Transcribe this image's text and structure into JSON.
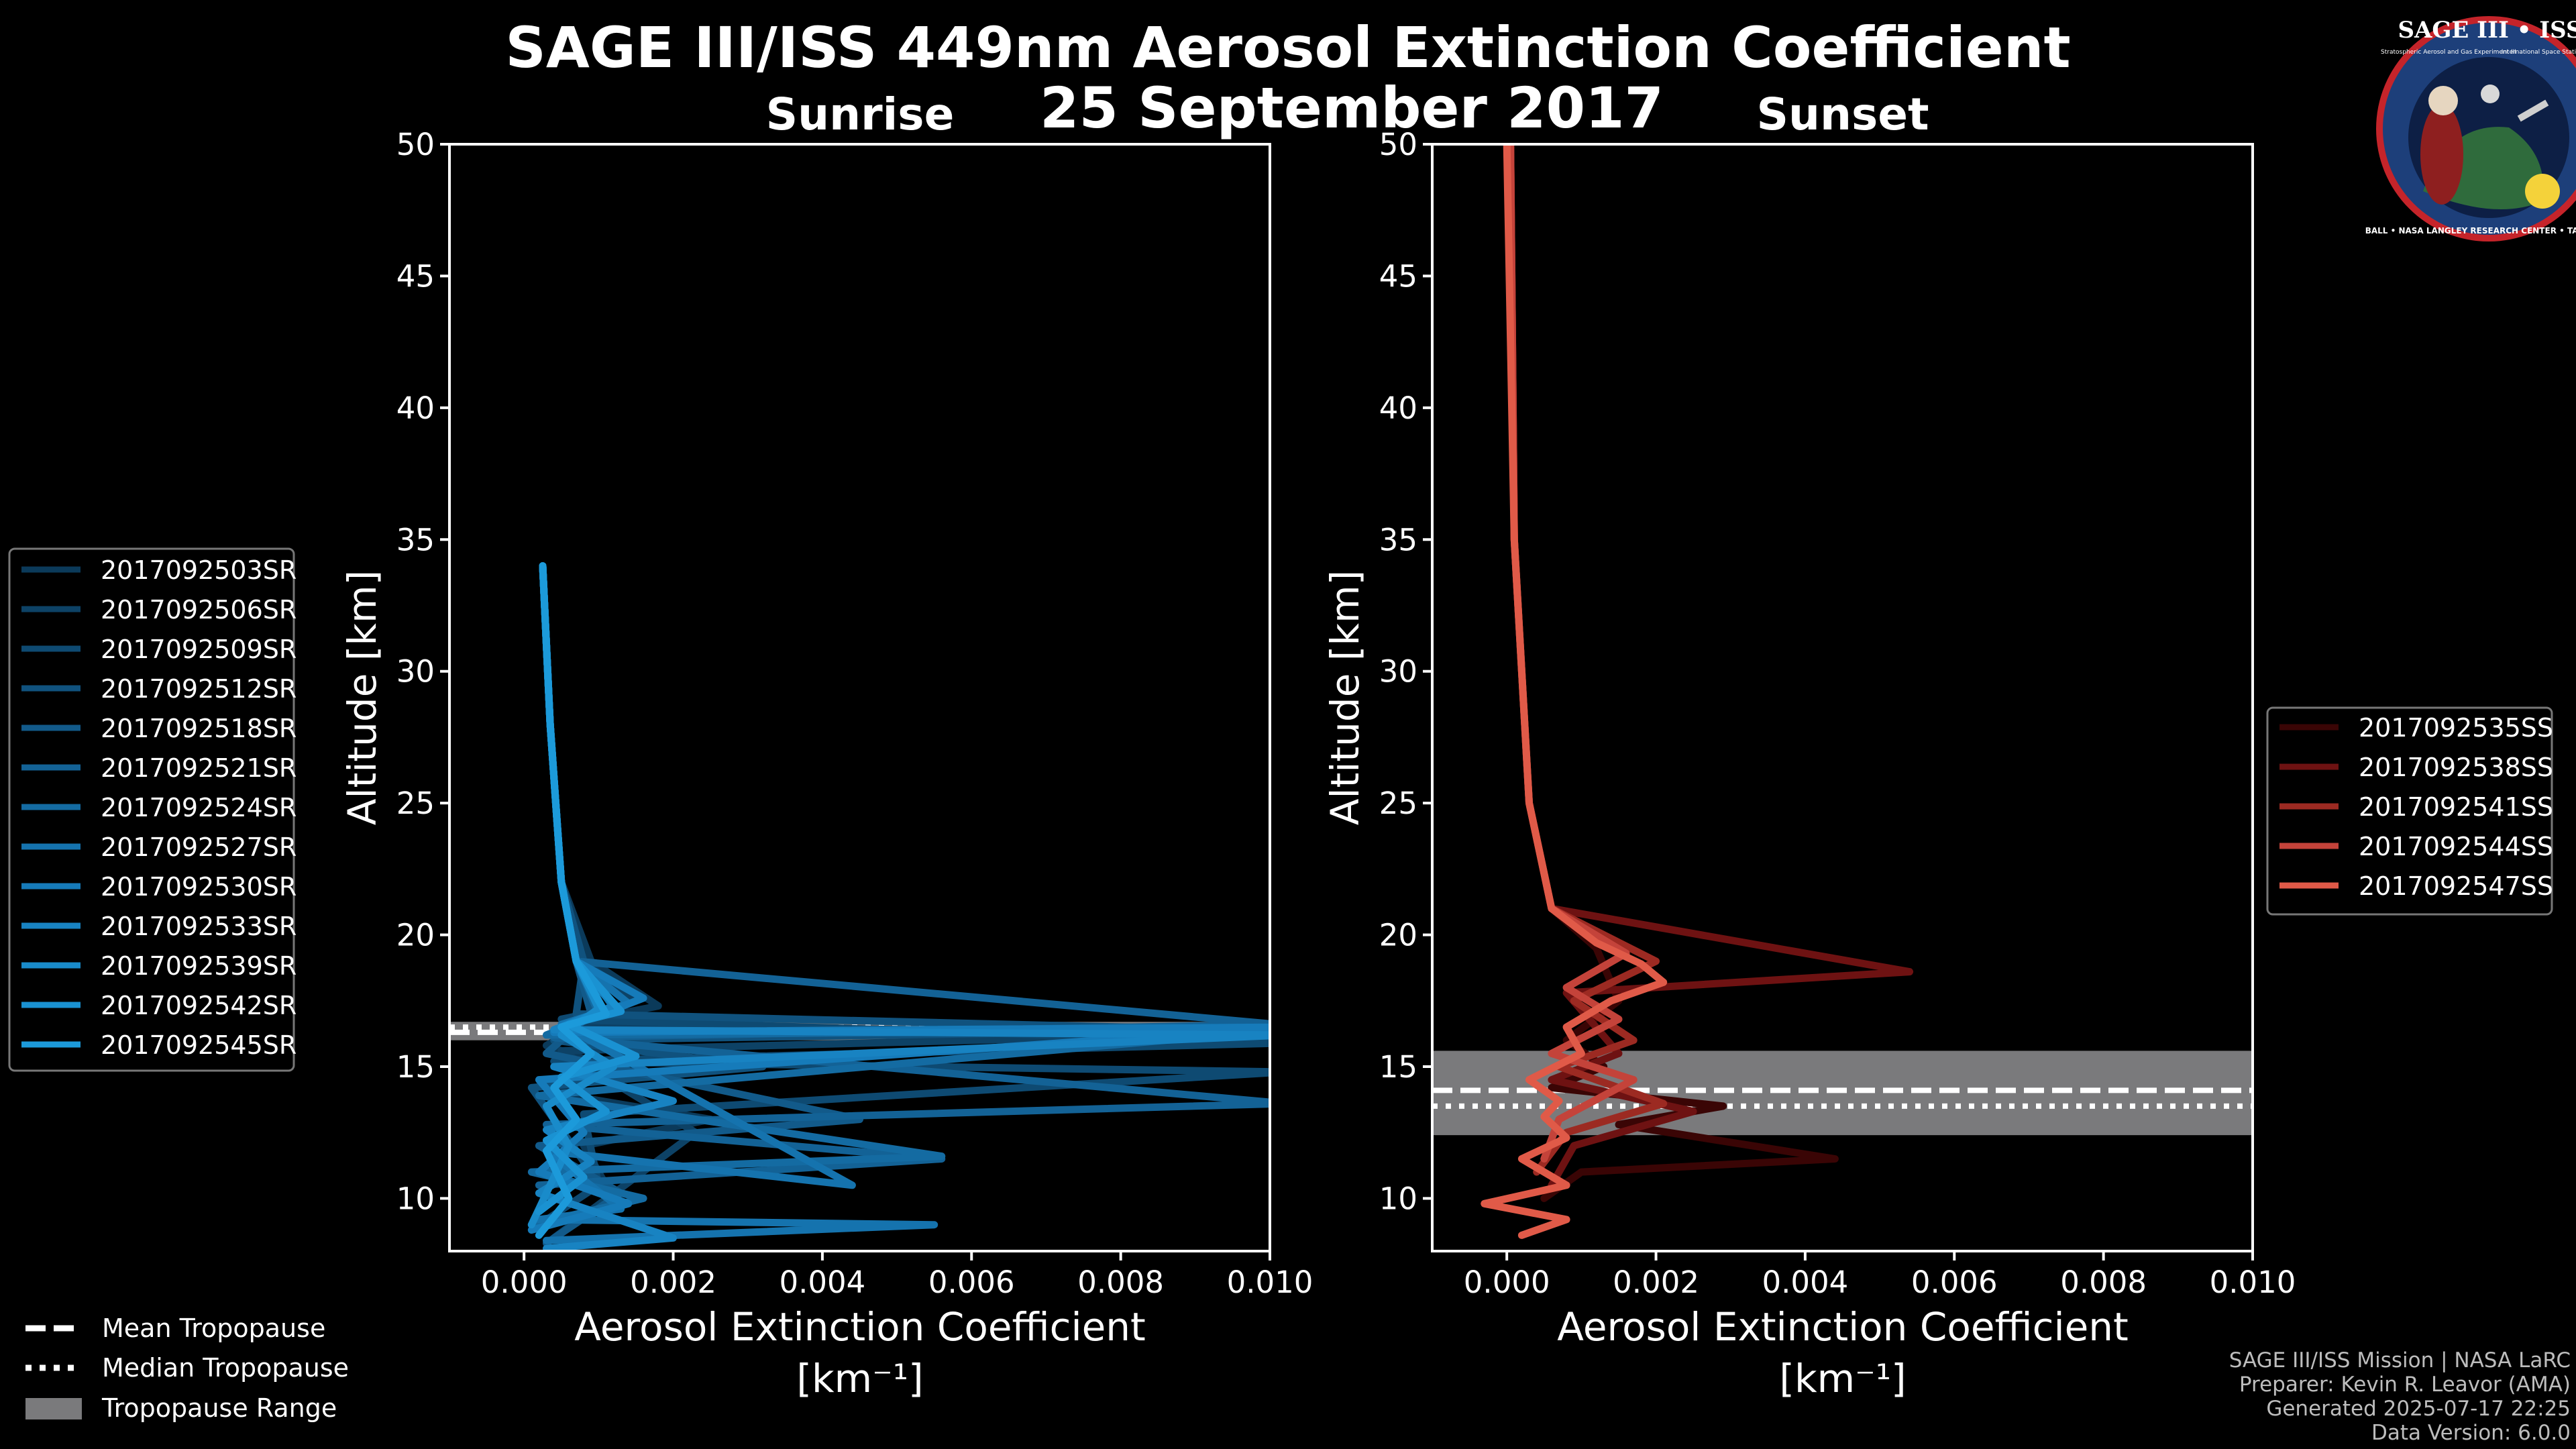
{
  "title": "SAGE III/ISS 449nm Aerosol Extinction Coefficient",
  "date": "25 September 2017",
  "logo": {
    "text": "SAGE III • ISS",
    "small1": "Stratospheric Aerosol and Gas Experiment III",
    "small2": "International Space Station",
    "ring": "BALL • NASA LANGLEY RESEARCH CENTER • TAS • ESA"
  },
  "credits": [
    "SAGE III/ISS Mission | NASA LaRC",
    "Preparer: Kevin R. Leavor (AMA)",
    "Generated 2025-07-17 22:25",
    "Data Version: 6.0.0"
  ],
  "tropopause_legend": {
    "mean": "Mean Tropopause",
    "median": "Median Tropopause",
    "range": "Tropopause Range"
  },
  "colors": {
    "sunrise": "#1a8fce",
    "sunset": "#e05a48",
    "tropo_band": "#7a7a7c"
  },
  "chart_data": [
    {
      "type": "line",
      "title": "Sunrise",
      "xlabel": "Aerosol Extinction Coefficient",
      "xunit": "[km⁻¹]",
      "ylabel": "Altitude [km]",
      "xlim": [
        -0.001,
        0.01
      ],
      "ylim": [
        8,
        50
      ],
      "xticks": [
        "0.000",
        "0.002",
        "0.004",
        "0.006",
        "0.008",
        "0.010"
      ],
      "xtick_values": [
        0,
        0.002,
        0.004,
        0.006,
        0.008,
        0.01
      ],
      "yticks": [
        10,
        15,
        20,
        25,
        30,
        35,
        40,
        45,
        50
      ],
      "tropopause": {
        "mean": 16.3,
        "median": 16.5,
        "range": [
          16.0,
          16.7
        ]
      },
      "series": [
        {
          "name": "2017092503SR",
          "color": "#0b3a5a",
          "x": [
            0.00025,
            0.00035,
            0.0005,
            0.0009,
            0.0018,
            0.0009,
            0.0003,
            0.0011,
            0.0004,
            0.0025,
            0.0008,
            0.0012,
            0.0006
          ],
          "y": [
            34,
            28,
            22,
            19,
            17.3,
            16.8,
            15.8,
            15.0,
            14.0,
            13.0,
            12.0,
            10.0,
            9.0
          ]
        },
        {
          "name": "2017092506SR",
          "color": "#0d4266",
          "x": [
            0.00025,
            0.00035,
            0.0005,
            0.0008,
            0.0015,
            0.0006,
            0.0102,
            0.0005,
            0.0023,
            0.0004
          ],
          "y": [
            34,
            28,
            22,
            19,
            17.5,
            16.5,
            16.3,
            15.6,
            12.5,
            8.5
          ]
        },
        {
          "name": "2017092509SR",
          "color": "#0e4a72",
          "x": [
            0.00025,
            0.00035,
            0.0005,
            0.0008,
            0.0012,
            0.0005,
            0.0103,
            0.0004,
            0.0102,
            0.0008,
            0.001,
            0.0002
          ],
          "y": [
            34,
            28,
            22,
            19,
            17.2,
            16.8,
            15.9,
            15.2,
            14.8,
            13.2,
            10.5,
            9.0
          ]
        },
        {
          "name": "2017092512SR",
          "color": "#10527e",
          "x": [
            0.00025,
            0.00035,
            0.0005,
            0.0008,
            0.0007,
            0.0095,
            0.0004,
            0.0032,
            0.0001,
            0.0009,
            0.0002
          ],
          "y": [
            34,
            28,
            22,
            19,
            17.0,
            16.4,
            16.0,
            15.0,
            14.2,
            11.0,
            9.5
          ]
        },
        {
          "name": "2017092518SR",
          "color": "#125a8a",
          "x": [
            0.00025,
            0.00035,
            0.0005,
            0.0007,
            0.0009,
            0.0003,
            0.0045,
            0.0002,
            0.0013,
            0.0003
          ],
          "y": [
            34,
            28,
            22,
            19,
            17.0,
            15.5,
            13.0,
            12.0,
            10.2,
            8.3
          ]
        },
        {
          "name": "2017092521SR",
          "color": "#136296",
          "x": [
            0.00025,
            0.00035,
            0.0005,
            0.0007,
            0.0101,
            0.0004,
            0.0102,
            0.0003,
            0.0056,
            0.0002
          ],
          "y": [
            34,
            28,
            22,
            19,
            16.6,
            16.1,
            13.6,
            12.8,
            11.5,
            10.5
          ]
        },
        {
          "name": "2017092524SR",
          "color": "#146ba2",
          "x": [
            0.00025,
            0.00035,
            0.0005,
            0.0007,
            0.001,
            0.0003,
            0.0102,
            0.0002,
            0.0056,
            0.0001,
            0.0016,
            0.0001
          ],
          "y": [
            34,
            28,
            22,
            19,
            17.0,
            16.2,
            16.4,
            13.9,
            11.6,
            11.0,
            10.0,
            9.0
          ]
        },
        {
          "name": "2017092527SR",
          "color": "#1573ae",
          "x": [
            0.00025,
            0.00035,
            0.0005,
            0.0007,
            0.0014,
            0.0005,
            0.0044,
            0.0003,
            0.0013,
            0.0002,
            0.0055,
            0.0003
          ],
          "y": [
            34,
            28,
            22,
            19,
            17.4,
            16.6,
            10.5,
            11.8,
            9.6,
            9.2,
            9.0,
            8.4
          ]
        },
        {
          "name": "2017092530SR",
          "color": "#167bba",
          "x": [
            0.00025,
            0.00035,
            0.0005,
            0.0007,
            0.0016,
            0.0004,
            0.0102,
            0.0002,
            0.0008,
            0.0002,
            0.0014,
            0.0001
          ],
          "y": [
            34,
            28,
            22,
            19,
            17.6,
            16.3,
            16.5,
            14.5,
            12.5,
            11.0,
            9.8,
            8.8
          ]
        },
        {
          "name": "2017092533SR",
          "color": "#1883c2",
          "x": [
            0.00025,
            0.00035,
            0.0005,
            0.0007,
            0.0012,
            0.0004,
            0.0102,
            0.0004,
            0.002,
            0.0003,
            0.0009,
            0.0002,
            0.002,
            0.0003
          ],
          "y": [
            34,
            28,
            22,
            19,
            17.3,
            16.4,
            16.2,
            15.0,
            13.7,
            12.6,
            11.4,
            10.2,
            8.5,
            8.1
          ]
        },
        {
          "name": "2017092539SR",
          "color": "#198bca",
          "x": [
            0.00025,
            0.00035,
            0.0005,
            0.0007,
            0.001,
            0.0005,
            0.0012,
            0.0003,
            0.0006,
            0.0001
          ],
          "y": [
            34,
            28,
            22,
            19,
            17.2,
            16.2,
            15.0,
            13.5,
            12.0,
            9.0
          ]
        },
        {
          "name": "2017092542SR",
          "color": "#1a92d2",
          "x": [
            0.00025,
            0.00035,
            0.0005,
            0.0007,
            0.0013,
            0.0006,
            0.0015,
            0.0005,
            0.0011,
            0.0003,
            0.0008,
            0.0002
          ],
          "y": [
            34,
            28,
            22,
            19,
            17.1,
            16.6,
            15.4,
            14.6,
            13.3,
            12.2,
            10.8,
            9.5
          ]
        },
        {
          "name": "2017092545SR",
          "color": "#1c9ada",
          "x": [
            0.00025,
            0.00035,
            0.0005,
            0.0007,
            0.0011,
            0.0005,
            0.0009,
            0.0004,
            0.0007,
            0.0003,
            0.0006,
            0.0002
          ],
          "y": [
            34,
            28,
            22,
            19,
            17.0,
            16.5,
            15.5,
            14.2,
            13.0,
            11.8,
            10.0,
            8.6
          ]
        }
      ]
    },
    {
      "type": "line",
      "title": "Sunset",
      "xlabel": "Aerosol Extinction Coefficient",
      "xunit": "[km⁻¹]",
      "ylabel": "Altitude [km]",
      "xlim": [
        -0.001,
        0.01
      ],
      "ylim": [
        8,
        50
      ],
      "xticks": [
        "0.000",
        "0.002",
        "0.004",
        "0.006",
        "0.008",
        "0.010"
      ],
      "xtick_values": [
        0,
        0.002,
        0.004,
        0.006,
        0.008,
        0.01
      ],
      "yticks": [
        10,
        15,
        20,
        25,
        30,
        35,
        40,
        45,
        50
      ],
      "tropopause": {
        "mean": 14.1,
        "median": 13.5,
        "range": [
          12.4,
          15.6
        ]
      },
      "series": [
        {
          "name": "2017092535SS",
          "color": "#3a0505",
          "x": [
            5e-05,
            0.0001,
            0.0003,
            0.0006,
            0.0012,
            0.0015,
            0.0008,
            0.0013,
            0.0006,
            0.0029,
            0.0015,
            0.0044,
            0.001,
            0.0005
          ],
          "y": [
            50,
            35,
            25,
            21,
            19.5,
            17.5,
            16.0,
            15.0,
            14.2,
            13.5,
            12.8,
            11.5,
            11.0,
            10.0
          ]
        },
        {
          "name": "2017092538SS",
          "color": "#6e1212",
          "x": [
            5e-05,
            0.0001,
            0.0003,
            0.0006,
            0.0054,
            0.0008,
            0.0015,
            0.0006,
            0.0025,
            0.0009,
            0.0006
          ],
          "y": [
            50,
            35,
            25,
            21,
            18.6,
            17.8,
            15.5,
            14.5,
            13.3,
            12.0,
            10.5
          ]
        },
        {
          "name": "2017092541SS",
          "color": "#9c2a22",
          "x": [
            5e-05,
            0.0001,
            0.0003,
            0.0006,
            0.002,
            0.0009,
            0.0017,
            0.0007,
            0.0021,
            0.0008,
            0.0004
          ],
          "y": [
            50,
            35,
            25,
            21,
            19.0,
            17.5,
            16.0,
            15.0,
            13.6,
            12.5,
            11.0
          ]
        },
        {
          "name": "2017092544SS",
          "color": "#c4433a",
          "x": [
            5e-05,
            0.0001,
            0.0003,
            0.0006,
            0.0016,
            0.0008,
            0.0015,
            0.0006,
            0.0017,
            0.0007,
            0.0005
          ],
          "y": [
            50,
            35,
            25,
            21,
            19.3,
            18.0,
            16.8,
            15.5,
            14.5,
            13.0,
            11.5
          ]
        },
        {
          "name": "2017092547SS",
          "color": "#e05a48",
          "x": [
            0.0,
            0.0001,
            0.0003,
            0.0006,
            0.0012,
            0.0018,
            0.0021,
            0.0014,
            0.0008,
            0.001,
            0.0003,
            0.0007,
            0.0005,
            0.0008,
            0.0002,
            0.0008,
            -0.0003,
            0.0008,
            0.0002
          ],
          "y": [
            50,
            35,
            25,
            21,
            19.7,
            18.9,
            18.2,
            17.5,
            16.5,
            15.5,
            14.5,
            13.7,
            13.1,
            12.3,
            11.5,
            10.5,
            9.8,
            9.2,
            8.6
          ]
        }
      ]
    }
  ]
}
